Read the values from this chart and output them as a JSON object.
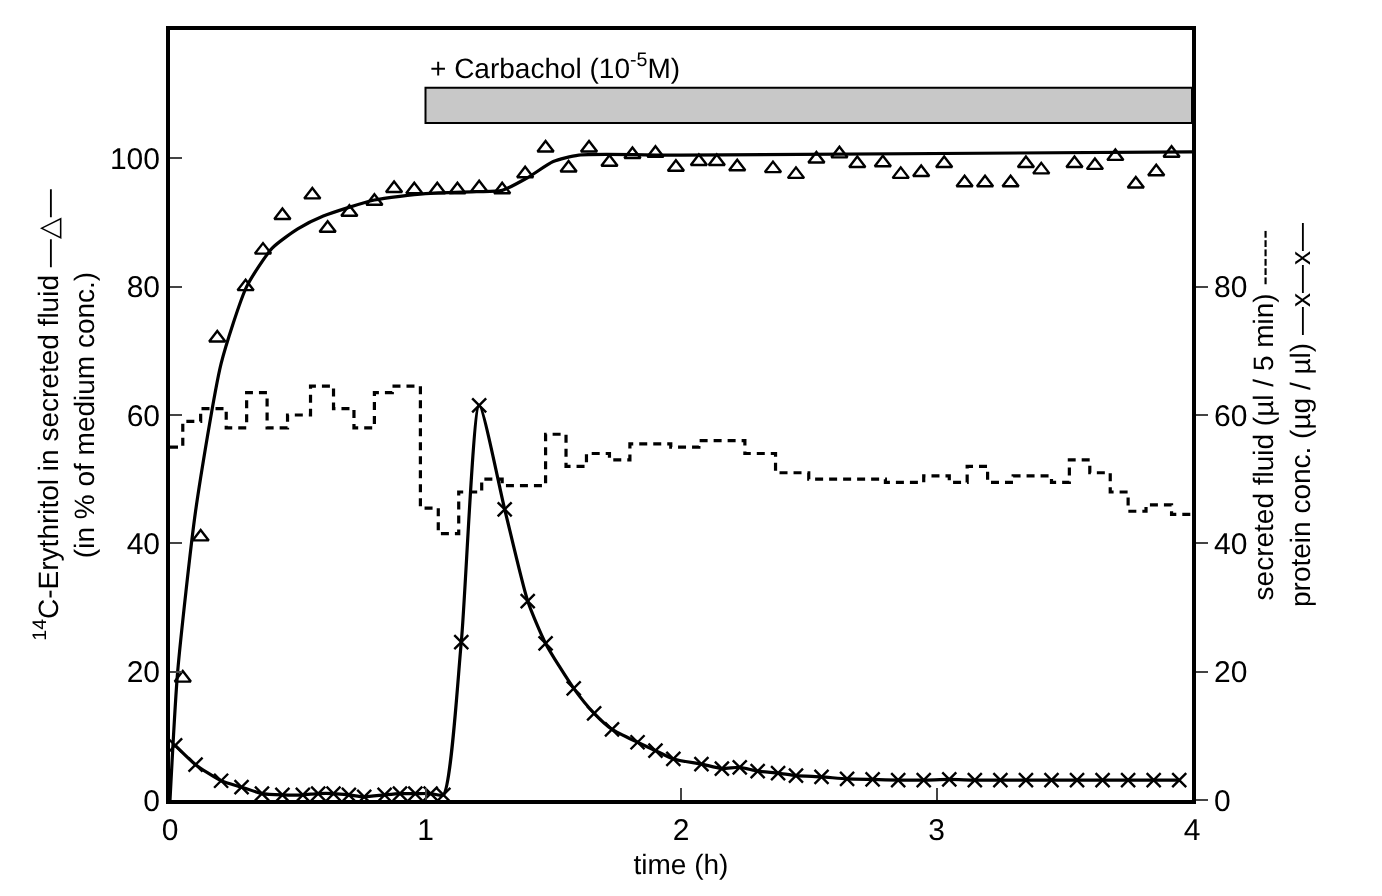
{
  "chart_data": {
    "type": "scatter",
    "xlabel": "time (h)",
    "ylabel": "$^{14}$C-Erythritol in secreted fluid —△—\n(in % of medium conc.)",
    "y2label": "secreted fluid (µl / 5 min) ------\nprotein conc. (µg / µl) —x—x—",
    "xlim": [
      0,
      4
    ],
    "xticks": [
      0,
      1,
      2,
      3,
      4
    ],
    "ylim": [
      0,
      120
    ],
    "yticks": [
      0,
      20,
      40,
      60,
      80,
      100
    ],
    "y2lim": [
      0,
      120
    ],
    "y2ticks": [
      0,
      20,
      40,
      60,
      80
    ],
    "bands": [
      {
        "axis": "x",
        "from": 1,
        "to": 4,
        "label": "+ Carbachol (10$^{-5}$M)",
        "color": "#c8c8c8"
      }
    ],
    "series": [
      {
        "marker": "triangle",
        "color": "#000000",
        "x": [
          0.05,
          0.12,
          0.185,
          0.296,
          0.364,
          0.44,
          0.557,
          0.617,
          0.702,
          0.8,
          0.877,
          0.956,
          1.046,
          1.125,
          1.21,
          1.3,
          1.39,
          1.47,
          1.56,
          1.64,
          1.72,
          1.81,
          1.9,
          1.98,
          2.07,
          2.14,
          2.22,
          2.36,
          2.45,
          2.53,
          2.62,
          2.69,
          2.79,
          2.86,
          2.94,
          3.03,
          3.11,
          3.19,
          3.29,
          3.35,
          3.41,
          3.54,
          3.62,
          3.7,
          3.78,
          3.86,
          3.92
        ],
        "values": [
          19,
          41,
          72,
          80,
          85.7,
          91.1,
          94.3,
          89.1,
          91.6,
          93.3,
          95.3,
          95.1,
          95.1,
          95.1,
          95.4,
          95.1,
          97.6,
          101.6,
          98.5,
          101.6,
          99.4,
          100.6,
          100.8,
          98.6,
          99.5,
          99.5,
          98.7,
          98.4,
          97.5,
          99.9,
          100.7,
          99.2,
          99.3,
          97.5,
          97.8,
          99.2,
          96.2,
          96.2,
          96.2,
          99.2,
          98.2,
          99.2,
          98.9,
          100.3,
          96,
          97.9,
          100.8
        ]
      },
      {
        "type": "line",
        "marker": "none",
        "line_style": "solid",
        "color": "#000000",
        "x": [
          0,
          0.03,
          0.1,
          0.2,
          0.3,
          0.4,
          0.5,
          0.6,
          0.8,
          1.0,
          1.2,
          1.3,
          1.4,
          1.5,
          1.6,
          2,
          4
        ],
        "values": [
          0,
          20,
          45,
          68,
          80,
          86,
          89,
          91,
          93.5,
          94.5,
          94.8,
          95,
          97,
          99.5,
          100.5,
          100.5,
          101
        ]
      },
      {
        "type": "step",
        "axis": "y2",
        "marker": "none",
        "line_style": "dashed",
        "color": "#000000",
        "x": [
          0,
          0.05,
          0.12,
          0.22,
          0.3,
          0.38,
          0.46,
          0.55,
          0.64,
          0.72,
          0.8,
          0.87,
          0.98,
          1.05,
          1.13,
          1.22,
          1.3,
          1.47,
          1.55,
          1.63,
          1.72,
          1.8,
          1.96,
          2.07,
          2.25,
          2.37,
          2.5,
          2.8,
          2.95,
          3.05,
          3.12,
          3.2,
          3.3,
          3.45,
          3.52,
          3.6,
          3.68,
          3.75,
          3.82,
          3.92,
          4
        ],
        "values": [
          55,
          59,
          61,
          58,
          63.5,
          58,
          60,
          64.5,
          61,
          58,
          63.5,
          64.5,
          45.5,
          41.5,
          48,
          50,
          49,
          57,
          52,
          54,
          53,
          55.5,
          55,
          56,
          54,
          51,
          50,
          49.5,
          50.5,
          49.5,
          52,
          49.5,
          50.5,
          49.5,
          53,
          51,
          48,
          45,
          46,
          44.5,
          44.5
        ]
      },
      {
        "type": "line",
        "axis": "y2",
        "marker": "cross",
        "line_style": "solid",
        "color": "#000000",
        "x": [
          0.02,
          0.1,
          0.2,
          0.28,
          0.36,
          0.44,
          0.52,
          0.58,
          0.64,
          0.7,
          0.76,
          0.84,
          0.9,
          0.96,
          1.02,
          1.07,
          1.14,
          1.21,
          1.31,
          1.4,
          1.47,
          1.58,
          1.66,
          1.73,
          1.83,
          1.9,
          1.97,
          2.08,
          2.16,
          2.23,
          2.3,
          2.38,
          2.45,
          2.55,
          2.65,
          2.75,
          2.85,
          2.95,
          3.05,
          3.15,
          3.25,
          3.35,
          3.45,
          3.55,
          3.65,
          3.75,
          3.85,
          3.95
        ],
        "values": [
          8.5,
          5.5,
          3,
          2,
          1,
          0.8,
          0.8,
          1,
          1,
          0.8,
          0.5,
          0.8,
          1,
          1,
          1,
          0.8,
          24.6,
          61.5,
          45.3,
          31,
          24.4,
          17.4,
          13.5,
          11,
          9,
          7.7,
          6.4,
          5.6,
          4.9,
          5.1,
          4.5,
          4.2,
          3.8,
          3.6,
          3.3,
          3.2,
          3.1,
          3.1,
          3.2,
          3.1,
          3.1,
          3.1,
          3.1,
          3.1,
          3.1,
          3.1,
          3.1,
          3.1
        ]
      }
    ]
  }
}
